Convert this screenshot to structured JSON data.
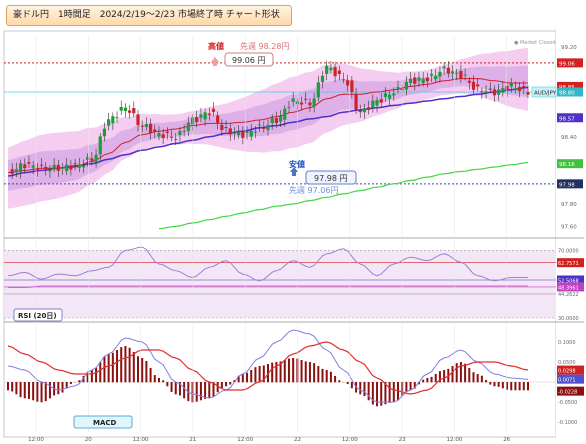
{
  "title": "豪ドル円　1時間足　2024/2/19～2/23 市場終了時 チャート形状",
  "market_status": "● Market Closed",
  "symbol_tag": "AUD/JPY",
  "annotations": {
    "high_label": "高値",
    "high_value": "99.06 円",
    "high_prev": "先週 98.28円",
    "low_label": "安値",
    "low_value": "97.98 円",
    "low_prev": "先週 97.06円"
  },
  "indicators": {
    "rsi_label": "RSI (20日)",
    "macd_label": "MACD"
  },
  "colors": {
    "up_candle": "#1a9e3a",
    "down_candle": "#d0202a",
    "band_fill": "#b57ad6",
    "band_outer": "#f3c8f0",
    "ma_red": "#d02030",
    "ma_blue": "#5030c8",
    "ma_green": "#40d840",
    "macd_bar": "#8b1010"
  },
  "chart_data": [
    {
      "type": "line",
      "panel": "price",
      "ylim": [
        97.55,
        99.3
      ],
      "y_ticks": [
        "99.20",
        "99.06",
        "98.85",
        "98.80",
        "98.57",
        "98.40",
        "98.16",
        "97.98",
        "97.80",
        "97.60"
      ],
      "x_ticks": [
        "12:00",
        "20",
        "12:00",
        "21",
        "12:00",
        "22",
        "12:00",
        "23",
        "12:00",
        "26"
      ],
      "reference_lines": {
        "high": 99.06,
        "low": 97.98,
        "last": 98.8
      },
      "series": [
        {
          "name": "",
          "values": [
            98.08,
            98.15,
            98.12,
            98.12,
            98.14,
            98.2,
            98.55,
            98.66,
            98.5,
            98.42,
            98.4,
            98.55,
            98.62,
            98.45,
            98.42,
            98.48,
            98.55,
            98.72,
            98.7,
            99.02,
            98.92,
            98.62,
            98.72,
            98.8,
            98.9,
            98.92,
            99.0,
            98.95,
            98.82,
            98.8,
            98.85,
            98.8
          ]
        },
        {
          "name": "",
          "values": [
            98.08,
            98.1,
            98.12,
            98.12,
            98.13,
            98.18,
            98.25,
            98.35,
            98.42,
            98.45,
            98.47,
            98.5,
            98.52,
            98.52,
            98.53,
            98.55,
            98.58,
            98.62,
            98.66,
            98.74,
            98.78,
            98.78,
            98.8,
            98.82,
            98.85,
            98.87,
            98.9,
            98.92,
            98.92,
            98.9,
            98.88,
            98.88
          ]
        },
        {
          "name": "",
          "values": [
            98.05,
            98.08,
            98.1,
            98.12,
            98.14,
            98.16,
            98.2,
            98.24,
            98.28,
            98.31,
            98.34,
            98.37,
            98.4,
            98.43,
            98.45,
            98.48,
            98.5,
            98.53,
            98.56,
            98.58,
            98.62,
            98.64,
            98.66,
            98.68,
            98.7,
            98.72,
            98.74,
            98.76,
            98.78,
            98.8,
            98.82,
            98.84
          ]
        },
        {
          "name": "",
          "values": [
            null,
            null,
            null,
            null,
            null,
            null,
            null,
            null,
            null,
            97.58,
            97.6,
            97.63,
            97.66,
            97.69,
            97.72,
            97.75,
            97.78,
            97.8,
            97.83,
            97.86,
            97.89,
            97.92,
            97.95,
            97.98,
            98.01,
            98.04,
            98.07,
            98.09,
            98.11,
            98.13,
            98.15,
            98.17
          ]
        }
      ]
    },
    {
      "type": "line",
      "panel": "rsi",
      "ylim": [
        30,
        75
      ],
      "y_ticks": [
        "70.0000",
        "62.7571",
        "52.5068",
        "48.3961",
        "44.2622",
        "30.0000"
      ],
      "series": [
        {
          "name": "",
          "values": [
            55,
            57,
            53,
            56,
            55,
            58,
            60,
            70,
            72,
            62,
            58,
            54,
            60,
            64,
            56,
            52,
            58,
            64,
            60,
            68,
            71,
            62,
            55,
            62,
            66,
            64,
            68,
            63,
            55,
            52,
            54,
            54
          ]
        },
        {
          "name": "",
          "values": [
            48,
            48,
            49,
            49,
            49,
            49,
            49,
            49,
            49,
            49,
            49,
            49,
            49,
            49,
            49,
            49,
            49,
            49,
            49,
            49,
            49,
            49,
            49,
            49,
            49,
            49,
            49,
            49,
            49,
            49,
            49,
            49
          ]
        }
      ]
    },
    {
      "type": "bar",
      "panel": "macd",
      "ylim": [
        -0.12,
        0.14
      ],
      "y_ticks": [
        "0.1000",
        "0.0500",
        "0.0298",
        "0.0071",
        "-0.0228",
        "-0.0500",
        "-0.1000"
      ],
      "series": [
        {
          "name": "",
          "values": [
            -0.02,
            -0.04,
            -0.05,
            -0.03,
            0.0,
            0.03,
            0.07,
            0.09,
            0.06,
            0.01,
            -0.03,
            -0.05,
            -0.04,
            -0.01,
            0.02,
            0.04,
            0.05,
            0.06,
            0.05,
            0.03,
            0.0,
            -0.03,
            -0.06,
            -0.05,
            -0.02,
            0.01,
            0.03,
            0.05,
            0.02,
            -0.01,
            -0.02,
            -0.02
          ]
        },
        {
          "name": "",
          "values": [
            0.04,
            0.03,
            0.0,
            -0.02,
            -0.01,
            0.03,
            0.07,
            0.11,
            0.1,
            0.05,
            0.0,
            -0.03,
            -0.04,
            -0.02,
            0.02,
            0.06,
            0.1,
            0.13,
            0.12,
            0.08,
            0.03,
            -0.02,
            -0.05,
            -0.05,
            -0.02,
            0.02,
            0.06,
            0.08,
            0.05,
            0.02,
            0.01,
            0.007
          ]
        },
        {
          "name": "",
          "values": [
            0.09,
            0.07,
            0.05,
            0.03,
            0.02,
            0.02,
            0.04,
            0.06,
            0.08,
            0.08,
            0.06,
            0.03,
            0.0,
            -0.02,
            -0.02,
            0.0,
            0.04,
            0.07,
            0.09,
            0.1,
            0.08,
            0.05,
            0.01,
            -0.02,
            -0.03,
            -0.02,
            0.01,
            0.04,
            0.05,
            0.05,
            0.04,
            0.03
          ]
        }
      ]
    }
  ]
}
